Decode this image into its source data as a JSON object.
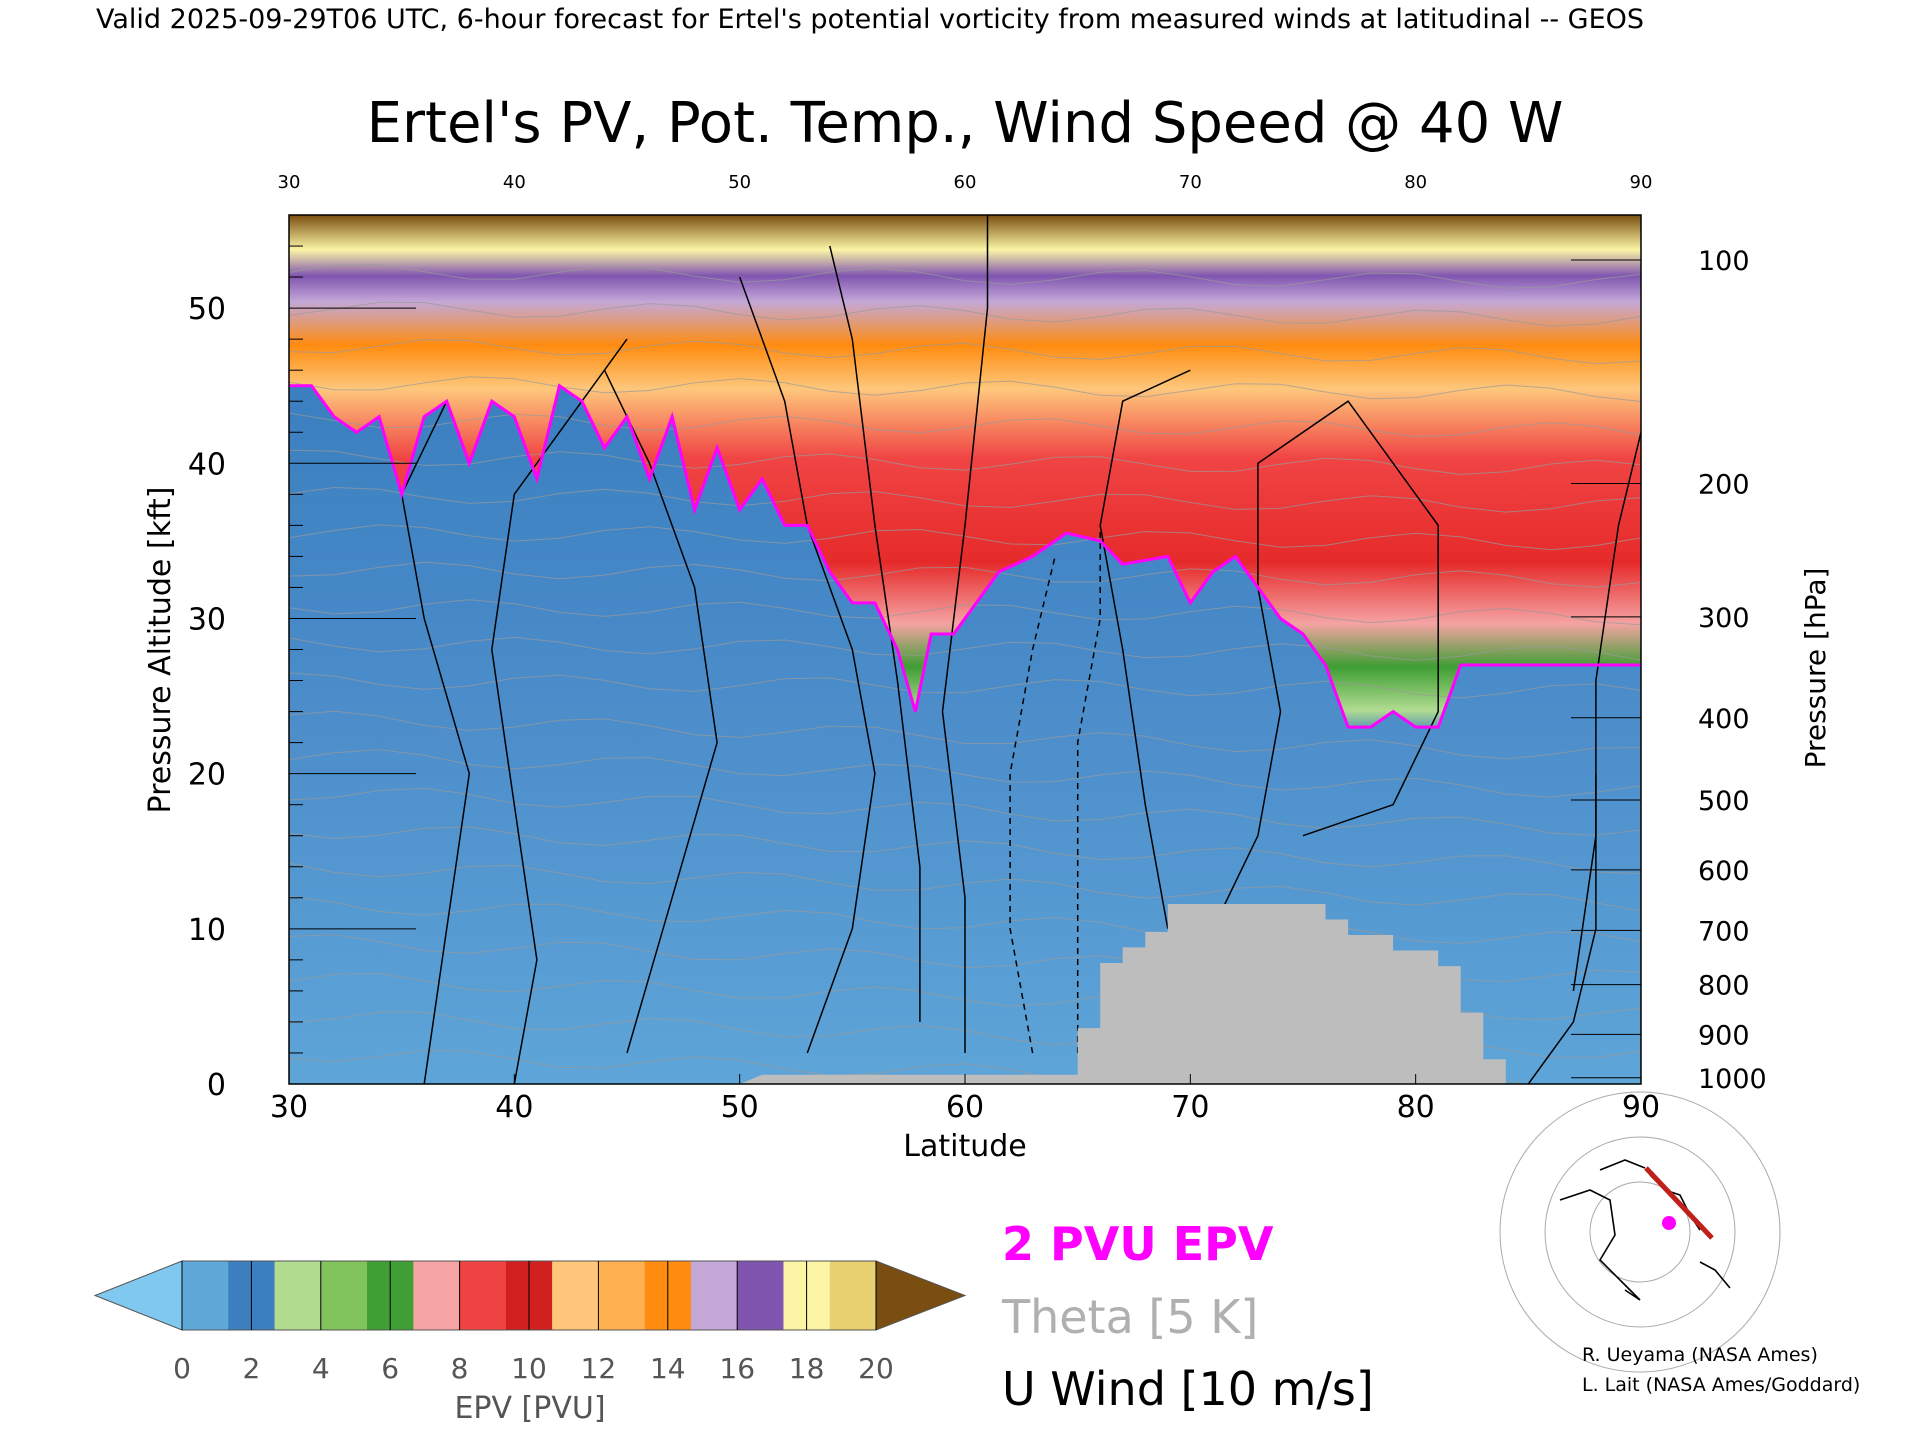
{
  "header": {
    "text": "Valid 2025-09-29T06 UTC, 6-hour forecast for Ertel's potential vorticity from measured winds at latitudinal -- GEOS"
  },
  "chart_data": {
    "type": "heatmap",
    "title": "Ertel's PV, Pot. Temp., Wind Speed @ 40 W",
    "xlabel": "Latitude",
    "ylabel": "Pressure Altitude [kft]",
    "y2label": "Pressure [hPa]",
    "xlim": [
      30,
      90
    ],
    "ylim": [
      0,
      56
    ],
    "x_ticks": [
      "30",
      "40",
      "50",
      "60",
      "70",
      "80",
      "90"
    ],
    "y_ticks": [
      "0",
      "10",
      "20",
      "30",
      "40",
      "50"
    ],
    "pressure_ticks": [
      {
        "label": "100",
        "kft": 53.1
      },
      {
        "label": "200",
        "kft": 38.7
      },
      {
        "label": "300",
        "kft": 30.1
      },
      {
        "label": "400",
        "kft": 23.6
      },
      {
        "label": "500",
        "kft": 18.3
      },
      {
        "label": "600",
        "kft": 13.8
      },
      {
        "label": "700",
        "kft": 9.9
      },
      {
        "label": "800",
        "kft": 6.4
      },
      {
        "label": "900",
        "kft": 3.2
      },
      {
        "label": "1000",
        "kft": 0.4
      }
    ],
    "tropopause_2pvu": [
      [
        30,
        45
      ],
      [
        31,
        45
      ],
      [
        32,
        43
      ],
      [
        33,
        42
      ],
      [
        34,
        43
      ],
      [
        35,
        38
      ],
      [
        36,
        43
      ],
      [
        37,
        44
      ],
      [
        38,
        40
      ],
      [
        39,
        44
      ],
      [
        40,
        43
      ],
      [
        41,
        39
      ],
      [
        42,
        45
      ],
      [
        43,
        44
      ],
      [
        44,
        41
      ],
      [
        45,
        43
      ],
      [
        46,
        39
      ],
      [
        47,
        43
      ],
      [
        48,
        37
      ],
      [
        49,
        41
      ],
      [
        50,
        37
      ],
      [
        51,
        39
      ],
      [
        52,
        36
      ],
      [
        53,
        36
      ],
      [
        54,
        33
      ],
      [
        55,
        31
      ],
      [
        56,
        31
      ],
      [
        57,
        28
      ],
      [
        57.8,
        24
      ],
      [
        58.5,
        29
      ],
      [
        59.5,
        29
      ],
      [
        60.5,
        31
      ],
      [
        61.5,
        33
      ],
      [
        63,
        34
      ],
      [
        64.5,
        35.5
      ],
      [
        66,
        35
      ],
      [
        67,
        33.5
      ],
      [
        69,
        34
      ],
      [
        70,
        31
      ],
      [
        71,
        33
      ],
      [
        72,
        34
      ],
      [
        73,
        32
      ],
      [
        74,
        30
      ],
      [
        75,
        29
      ],
      [
        76,
        27
      ],
      [
        77,
        23
      ],
      [
        78,
        23
      ],
      [
        79,
        24
      ],
      [
        80,
        23
      ],
      [
        81,
        23
      ],
      [
        82,
        27
      ],
      [
        83,
        27
      ],
      [
        84,
        27
      ],
      [
        85,
        27
      ],
      [
        86,
        27
      ],
      [
        87,
        27
      ],
      [
        88,
        27
      ],
      [
        89,
        27
      ],
      [
        90,
        27
      ]
    ],
    "surface_mask_kft": [
      [
        50,
        0
      ],
      [
        51,
        0.6
      ],
      [
        55,
        0.6
      ],
      [
        60,
        0.6
      ],
      [
        65,
        0.6
      ],
      [
        65,
        3.6
      ],
      [
        66,
        3.6
      ],
      [
        66,
        7.8
      ],
      [
        67,
        7.8
      ],
      [
        67,
        8.8
      ],
      [
        68,
        8.8
      ],
      [
        68,
        9.8
      ],
      [
        69,
        9.8
      ],
      [
        69,
        11.6
      ],
      [
        76,
        11.6
      ],
      [
        76,
        10.6
      ],
      [
        77,
        10.6
      ],
      [
        77,
        9.6
      ],
      [
        79,
        9.6
      ],
      [
        79,
        8.6
      ],
      [
        81,
        8.6
      ],
      [
        81,
        7.6
      ],
      [
        82,
        7.6
      ],
      [
        82,
        4.6
      ],
      [
        83,
        4.6
      ],
      [
        83,
        1.6
      ],
      [
        84,
        1.6
      ],
      [
        84,
        0
      ],
      [
        50,
        0
      ]
    ],
    "wind_isotachs_m_s": [
      "0",
      "10",
      "30"
    ],
    "theta_levels_K": [
      "300",
      "310",
      "320",
      "330",
      "340",
      "350",
      "360",
      "390",
      "410",
      "420"
    ],
    "colorbar": {
      "label": "EPV [PVU]",
      "min": 0,
      "max": 20,
      "step": 2,
      "ticks": [
        "0",
        "2",
        "4",
        "6",
        "8",
        "10",
        "12",
        "14",
        "16",
        "18",
        "20"
      ],
      "colors": [
        "#81c8f0",
        "#5fa9d8",
        "#3b7fc0",
        "#b1dc90",
        "#82c45c",
        "#3f9e34",
        "#f5a3a3",
        "#f04444",
        "#d02020",
        "#fec77c",
        "#ffb050",
        "#ff8c10",
        "#c4a8d8",
        "#8055b0",
        "#fbf5a5",
        "#e8d070",
        "#7a4e10"
      ]
    }
  },
  "legend": {
    "epv": "2 PVU EPV",
    "theta": "Theta [5 K]",
    "wind": "U Wind [10 m/s]",
    "epv_color": "#ff00ff",
    "theta_color": "#b0b0b0"
  },
  "credits": {
    "line1": "R. Ueyama (NASA Ames)",
    "line2": "L. Lait (NASA Ames/Goddard)"
  }
}
